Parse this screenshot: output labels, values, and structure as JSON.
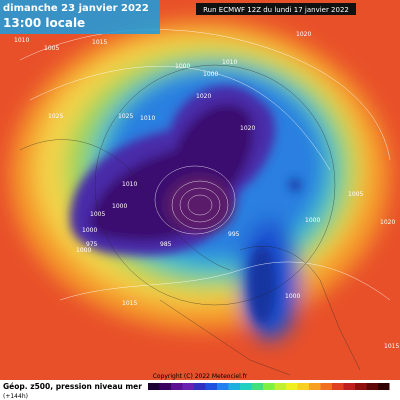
{
  "header": {
    "date": "dimanche 23 janvier 2022",
    "time": "13:00 locale",
    "run": "Run ECMWF 12Z du lundi 17 janvier 2022"
  },
  "isobar_labels": [
    "1010",
    "1005",
    "1015",
    "1020",
    "1000",
    "1000",
    "1010",
    "1025",
    "1025",
    "1010",
    "1005",
    "1000",
    "1000",
    "975",
    "1000",
    "985",
    "995",
    "1020",
    "1005",
    "1000",
    "1000",
    "1015",
    "1015",
    "1020",
    "1020",
    "1010"
  ],
  "footer": {
    "title": "Géop. z500, pression niveau mer",
    "lead": "(+144h)",
    "copyright": "Copyright (C) 2022 Meteociel.fr"
  }
}
